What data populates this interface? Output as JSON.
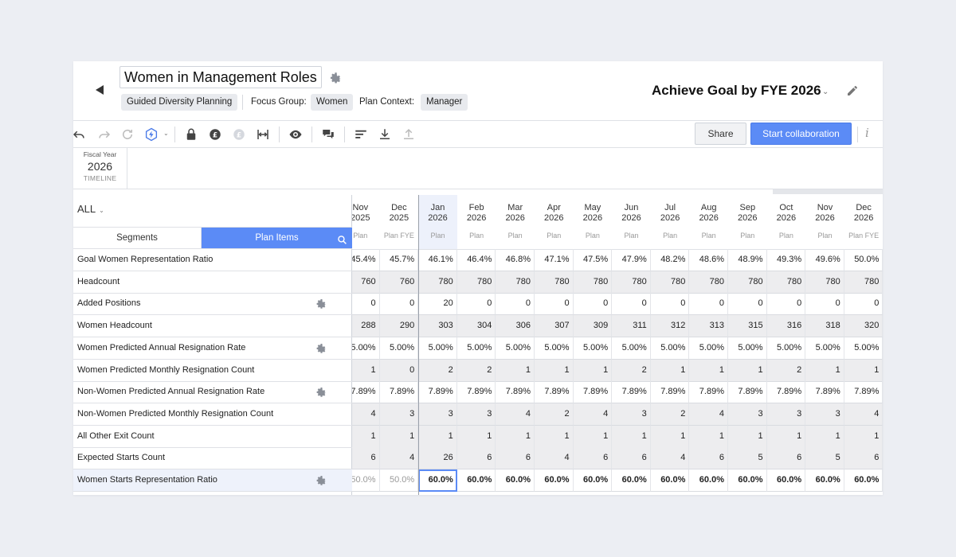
{
  "header": {
    "title": "Women in Management Roles",
    "chips": [
      "Guided Diversity Planning"
    ],
    "focus_group_label": "Focus Group:",
    "focus_group_value": "Women",
    "plan_context_label": "Plan Context:",
    "plan_context_value": "Manager",
    "goal": "Achieve Goal by FYE 2026"
  },
  "toolbar": {
    "share_label": "Share",
    "collab_label": "Start collaboration",
    "info_label": "i"
  },
  "timeline": {
    "fiscal_label": "Fiscal Year",
    "year": "2026",
    "label": "TIMELINE"
  },
  "filter": {
    "label": "ALL"
  },
  "tabs": {
    "segments": "Segments",
    "plan_items": "Plan Items"
  },
  "columns": [
    {
      "month": "Nov",
      "year": "2025",
      "type": "Plan"
    },
    {
      "month": "Dec",
      "year": "2025",
      "type": "Plan FYE"
    },
    {
      "month": "Jan",
      "year": "2026",
      "type": "Plan"
    },
    {
      "month": "Feb",
      "year": "2026",
      "type": "Plan"
    },
    {
      "month": "Mar",
      "year": "2026",
      "type": "Plan"
    },
    {
      "month": "Apr",
      "year": "2026",
      "type": "Plan"
    },
    {
      "month": "May",
      "year": "2026",
      "type": "Plan"
    },
    {
      "month": "Jun",
      "year": "2026",
      "type": "Plan"
    },
    {
      "month": "Jul",
      "year": "2026",
      "type": "Plan"
    },
    {
      "month": "Aug",
      "year": "2026",
      "type": "Plan"
    },
    {
      "month": "Sep",
      "year": "2026",
      "type": "Plan"
    },
    {
      "month": "Oct",
      "year": "2026",
      "type": "Plan"
    },
    {
      "month": "Nov",
      "year": "2026",
      "type": "Plan"
    },
    {
      "month": "Dec",
      "year": "2026",
      "type": "Plan FYE"
    }
  ],
  "rows": [
    {
      "label": "Goal Women Representation Ratio",
      "gear": false,
      "style": "edit",
      "values": [
        "45.4%",
        "45.7%",
        "46.1%",
        "46.4%",
        "46.8%",
        "47.1%",
        "47.5%",
        "47.9%",
        "48.2%",
        "48.6%",
        "48.9%",
        "49.3%",
        "49.6%",
        "50.0%"
      ]
    },
    {
      "label": "Headcount",
      "gear": false,
      "style": "ro",
      "values": [
        "760",
        "760",
        "780",
        "780",
        "780",
        "780",
        "780",
        "780",
        "780",
        "780",
        "780",
        "780",
        "780",
        "780"
      ]
    },
    {
      "label": "Added Positions",
      "gear": true,
      "style": "edit",
      "values": [
        "0",
        "0",
        "20",
        "0",
        "0",
        "0",
        "0",
        "0",
        "0",
        "0",
        "0",
        "0",
        "0",
        "0"
      ]
    },
    {
      "label": "Women Headcount",
      "gear": false,
      "style": "ro",
      "values": [
        "288",
        "290",
        "303",
        "304",
        "306",
        "307",
        "309",
        "311",
        "312",
        "313",
        "315",
        "316",
        "318",
        "320"
      ]
    },
    {
      "label": "Women Predicted Annual Resignation Rate",
      "gear": true,
      "style": "edit",
      "values": [
        "5.00%",
        "5.00%",
        "5.00%",
        "5.00%",
        "5.00%",
        "5.00%",
        "5.00%",
        "5.00%",
        "5.00%",
        "5.00%",
        "5.00%",
        "5.00%",
        "5.00%",
        "5.00%"
      ]
    },
    {
      "label": "Women Predicted Monthly Resignation Count",
      "gear": false,
      "style": "ro",
      "values": [
        "1",
        "0",
        "2",
        "2",
        "1",
        "1",
        "1",
        "2",
        "1",
        "1",
        "1",
        "2",
        "1",
        "1"
      ]
    },
    {
      "label": "Non-Women Predicted Annual Resignation Rate",
      "gear": true,
      "style": "edit",
      "values": [
        "7.89%",
        "7.89%",
        "7.89%",
        "7.89%",
        "7.89%",
        "7.89%",
        "7.89%",
        "7.89%",
        "7.89%",
        "7.89%",
        "7.89%",
        "7.89%",
        "7.89%",
        "7.89%"
      ]
    },
    {
      "label": "Non-Women Predicted Monthly Resignation Count",
      "gear": false,
      "style": "ro",
      "values": [
        "4",
        "3",
        "3",
        "3",
        "4",
        "2",
        "4",
        "3",
        "2",
        "4",
        "3",
        "3",
        "3",
        "4"
      ]
    },
    {
      "label": "All Other Exit Count",
      "gear": false,
      "style": "ro",
      "values": [
        "1",
        "1",
        "1",
        "1",
        "1",
        "1",
        "1",
        "1",
        "1",
        "1",
        "1",
        "1",
        "1",
        "1"
      ]
    },
    {
      "label": "Expected Starts Count",
      "gear": false,
      "style": "ro",
      "values": [
        "6",
        "4",
        "26",
        "6",
        "6",
        "4",
        "6",
        "6",
        "4",
        "6",
        "5",
        "6",
        "5",
        "6"
      ]
    },
    {
      "label": "Women Starts Representation Ratio",
      "gear": true,
      "style": "edit",
      "values": [
        "50.0%",
        "50.0%",
        "60.0%",
        "60.0%",
        "60.0%",
        "60.0%",
        "60.0%",
        "60.0%",
        "60.0%",
        "60.0%",
        "60.0%",
        "60.0%",
        "60.0%",
        "60.0%"
      ]
    }
  ]
}
